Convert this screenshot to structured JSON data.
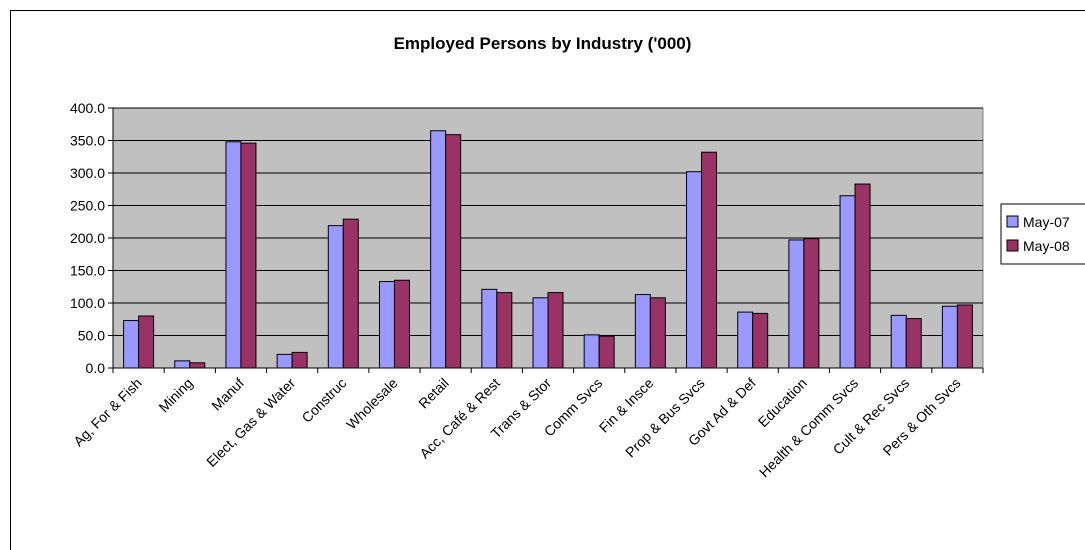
{
  "chart_data": {
    "type": "bar",
    "title": "Employed Persons by Industry ('000)",
    "xlabel": "",
    "ylabel": "",
    "ylim": [
      0,
      400
    ],
    "yticks": [
      "0.0",
      "50.0",
      "100.0",
      "150.0",
      "200.0",
      "250.0",
      "300.0",
      "350.0",
      "400.0"
    ],
    "grid": true,
    "legend_position": "right",
    "plot_background": "#c0c0c0",
    "categories": [
      "Ag, For & Fish",
      "Mining",
      "Manuf",
      "Elect, Gas & Water",
      "Construc",
      "Wholesale",
      "Retail",
      "Acc, Café & Rest",
      "Trans & Stor",
      "Comm Svcs",
      "Fin & Insce",
      "Prop & Bus Svcs",
      "Govt Ad & Def",
      "Education",
      "Health & Comm Svcs",
      "Cult & Rec Svcs",
      "Pers & Oth Svcs"
    ],
    "series": [
      {
        "name": "May-07",
        "color": "#9999ff",
        "values": [
          73,
          11,
          348,
          21,
          219,
          133,
          365,
          121,
          108,
          51,
          113,
          302,
          86,
          197,
          265,
          81,
          95
        ]
      },
      {
        "name": "May-08",
        "color": "#993366",
        "values": [
          80,
          8,
          346,
          24,
          229,
          135,
          359,
          116,
          116,
          49,
          108,
          332,
          84,
          199,
          283,
          76,
          97
        ]
      }
    ]
  }
}
